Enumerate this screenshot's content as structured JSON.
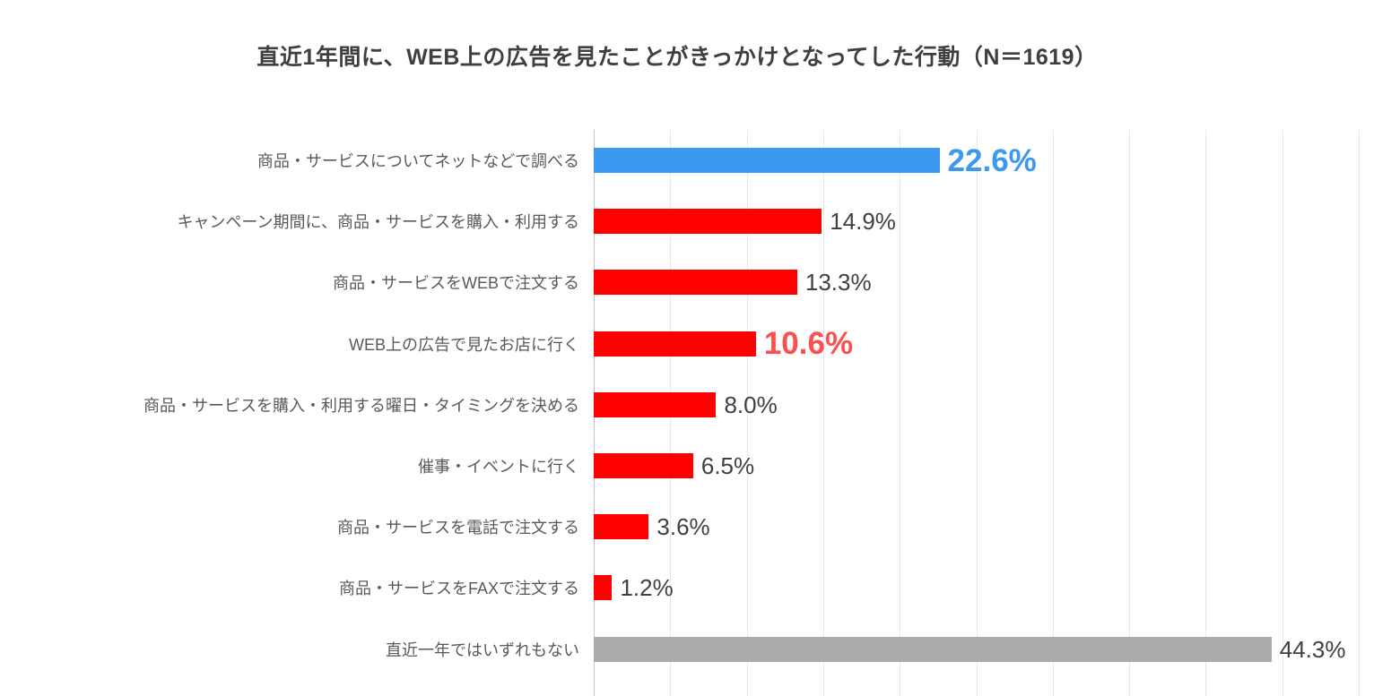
{
  "title": "直近1年間に、WEB上の広告を見たことがきっかけとなってした行動（N＝1619）",
  "chart_data": {
    "type": "bar",
    "orientation": "horizontal",
    "title": "直近1年間に、WEB上の広告を見たことがきっかけとなってした行動（N＝1619）",
    "sample_size": "N＝1619",
    "categories": [
      "商品・サービスについてネットなどで調べる",
      "キャンペーン期間に、商品・サービスを購入・利用する",
      "商品・サービスをWEBで注文する",
      "WEB上の広告で見たお店に行く",
      "商品・サービスを購入・利用する曜日・タイミングを決める",
      "催事・イベントに行く",
      "商品・サービスを電話で注文する",
      "商品・サービスをFAXで注文する",
      "直近一年ではいずれもない"
    ],
    "values": [
      22.6,
      14.9,
      13.3,
      10.6,
      8.0,
      6.5,
      3.6,
      1.2,
      44.3
    ],
    "value_labels": [
      "22.6%",
      "14.9%",
      "13.3%",
      "10.6%",
      "8.0%",
      "6.5%",
      "3.6%",
      "1.2%",
      "44.3%"
    ],
    "bar_colors": [
      "#3b99f1",
      "#ff0000",
      "#ff0000",
      "#ff0000",
      "#ff0000",
      "#ff0000",
      "#ff0000",
      "#ff0000",
      "#ababab"
    ],
    "value_label_styles": [
      "highlight-blue",
      "normal",
      "normal",
      "highlight-red",
      "normal",
      "normal",
      "normal",
      "normal",
      "normal"
    ],
    "value_label_colors": [
      "#3b99f1",
      "#404040",
      "#404040",
      "#fa5050",
      "#404040",
      "#404040",
      "#404040",
      "#404040",
      "#404040"
    ],
    "xlabel": "",
    "ylabel": "",
    "xlim": [
      0,
      50
    ],
    "gridline_step": 5,
    "grid": true,
    "legend": false,
    "colors": {
      "highlight_bar_blue": "#3b99f1",
      "bar_red": "#ff0000",
      "bar_gray": "#ababab",
      "value_label_blue": "#3b99f1",
      "value_label_red": "#fa5050",
      "value_label_dark": "#404040",
      "category_label_gray": "#595959",
      "title_gray": "#3f3f3f",
      "gridline_gray": "#e8e8e8"
    }
  }
}
